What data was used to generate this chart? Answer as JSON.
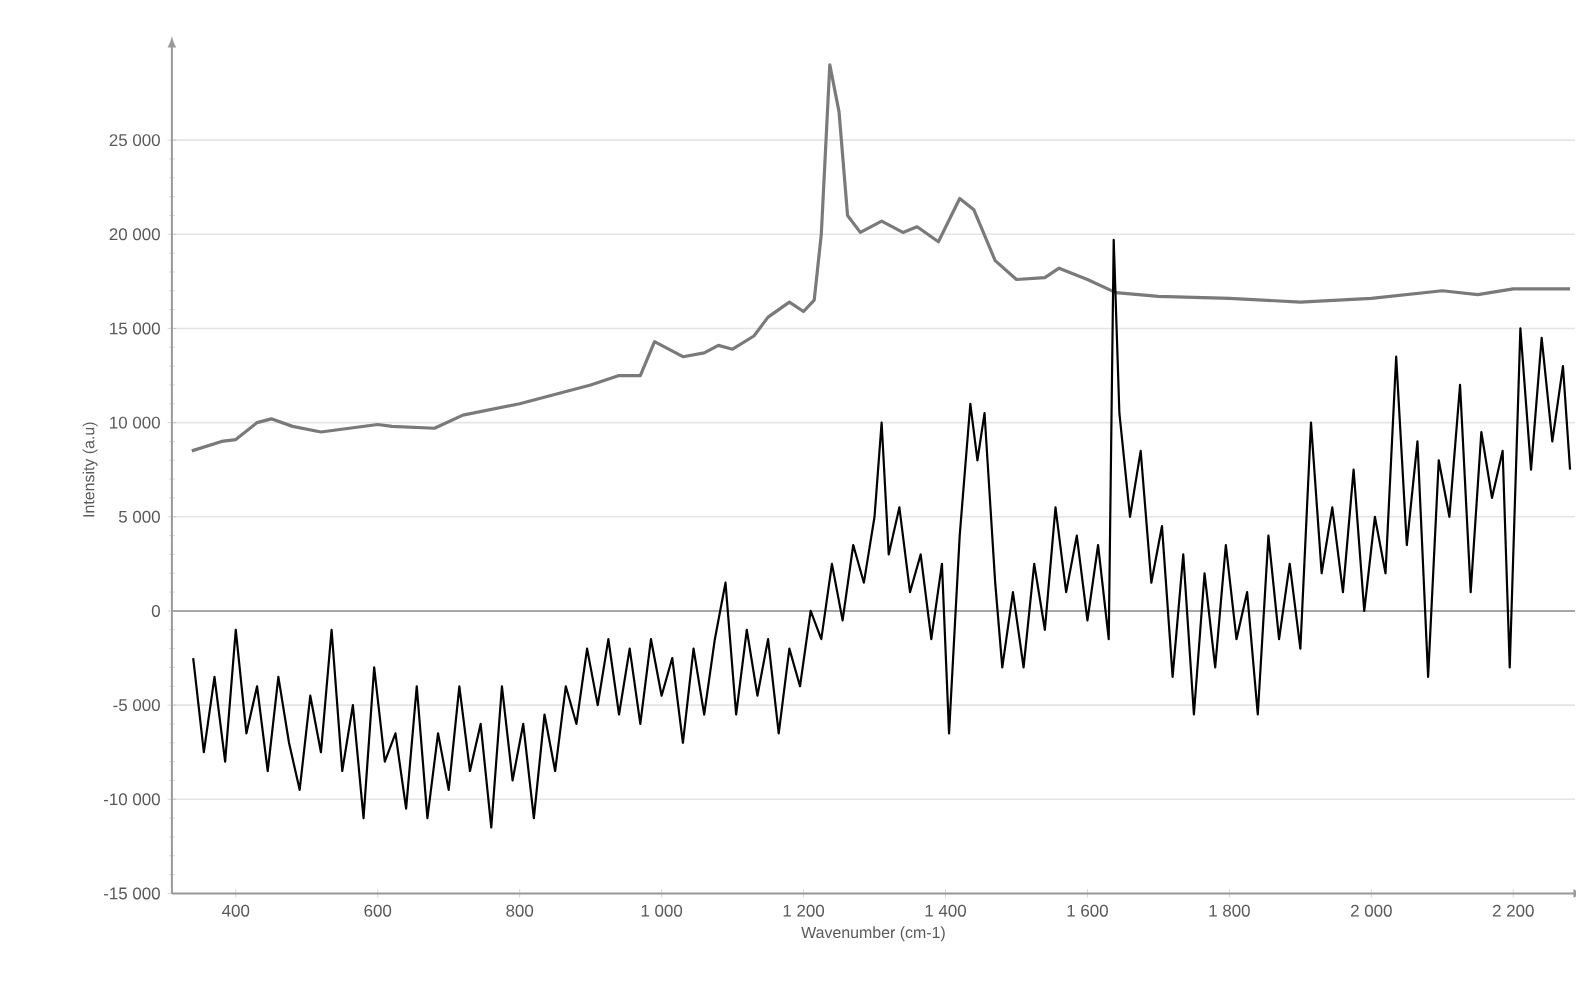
{
  "chart_data": {
    "type": "line",
    "xlabel": "Wavenumber (cm-1)",
    "ylabel": "Intensity (a.u)",
    "xlim": [
      310,
      2287
    ],
    "ylim": [
      -15000,
      30000
    ],
    "xticks": [
      400,
      600,
      800,
      {
        "value": 1000,
        "label": "1 000"
      },
      {
        "value": 1200,
        "label": "1 200"
      },
      {
        "value": 1400,
        "label": "1 400"
      },
      {
        "value": 1600,
        "label": "1 600"
      },
      {
        "value": 1800,
        "label": "1 800"
      },
      {
        "value": 2000,
        "label": "2 000"
      },
      {
        "value": 2200,
        "label": "2 200"
      }
    ],
    "yticks": [
      {
        "value": -15000,
        "label": "-15 000"
      },
      {
        "value": -10000,
        "label": "-10 000"
      },
      {
        "value": -5000,
        "label": "-5 000"
      },
      0,
      {
        "value": 5000,
        "label": "5 000"
      },
      {
        "value": 10000,
        "label": "10 000"
      },
      {
        "value": 15000,
        "label": "15 000"
      },
      {
        "value": 20000,
        "label": "20 000"
      },
      {
        "value": 25000,
        "label": "25 000"
      }
    ],
    "grid": "y",
    "ref_lines": [
      {
        "axis": "y",
        "value": 0,
        "color": "#a6a6a6"
      }
    ],
    "series": [
      {
        "color": "#7a7a7a",
        "x": [
          338,
          380,
          400,
          430,
          450,
          480,
          520,
          560,
          600,
          620,
          680,
          720,
          800,
          850,
          900,
          940,
          970,
          990,
          1030,
          1060,
          1080,
          1100,
          1130,
          1150,
          1180,
          1200,
          1215,
          1225,
          1237,
          1250,
          1262,
          1280,
          1310,
          1340,
          1360,
          1390,
          1420,
          1440,
          1470,
          1500,
          1540,
          1560,
          1600,
          1640,
          1700,
          1800,
          1900,
          2000,
          2100,
          2150,
          2200,
          2280
        ],
        "values": [
          8500,
          9000,
          9100,
          10000,
          10200,
          9800,
          9500,
          9700,
          9900,
          9800,
          9700,
          10400,
          11000,
          11500,
          12000,
          12500,
          12500,
          14300,
          13500,
          13700,
          14100,
          13900,
          14600,
          15600,
          16400,
          15900,
          16500,
          20000,
          29000,
          26500,
          21000,
          20100,
          20700,
          20100,
          20400,
          19600,
          21900,
          21300,
          18600,
          17600,
          17700,
          18200,
          17600,
          16900,
          16700,
          16600,
          16400,
          16600,
          17000,
          16800,
          17100,
          17100
        ]
      },
      {
        "color": "#000000",
        "x": [
          340,
          355,
          370,
          385,
          400,
          415,
          430,
          445,
          460,
          475,
          490,
          505,
          520,
          535,
          550,
          565,
          580,
          595,
          610,
          625,
          640,
          655,
          670,
          685,
          700,
          715,
          730,
          745,
          760,
          775,
          790,
          805,
          820,
          835,
          850,
          865,
          880,
          895,
          910,
          925,
          940,
          955,
          970,
          985,
          1000,
          1015,
          1030,
          1045,
          1060,
          1075,
          1090,
          1105,
          1120,
          1135,
          1150,
          1165,
          1180,
          1195,
          1210,
          1225,
          1240,
          1255,
          1270,
          1285,
          1300,
          1310,
          1320,
          1335,
          1350,
          1365,
          1380,
          1395,
          1405,
          1420,
          1435,
          1445,
          1455,
          1470,
          1480,
          1495,
          1510,
          1525,
          1540,
          1555,
          1570,
          1585,
          1600,
          1615,
          1630,
          1637,
          1645,
          1660,
          1675,
          1690,
          1705,
          1720,
          1735,
          1750,
          1765,
          1780,
          1795,
          1810,
          1825,
          1840,
          1855,
          1870,
          1885,
          1900,
          1915,
          1930,
          1945,
          1960,
          1975,
          1990,
          2005,
          2020,
          2035,
          2050,
          2065,
          2080,
          2095,
          2110,
          2125,
          2140,
          2155,
          2170,
          2185,
          2195,
          2210,
          2225,
          2240,
          2255,
          2270,
          2280
        ],
        "values": [
          -2500,
          -7500,
          -3500,
          -8000,
          -1000,
          -6500,
          -4000,
          -8500,
          -3500,
          -7000,
          -9500,
          -4500,
          -7500,
          -1000,
          -8500,
          -5000,
          -11000,
          -3000,
          -8000,
          -6500,
          -10500,
          -4000,
          -11000,
          -6500,
          -9500,
          -4000,
          -8500,
          -6000,
          -11500,
          -4000,
          -9000,
          -6000,
          -11000,
          -5500,
          -8500,
          -4000,
          -6000,
          -2000,
          -5000,
          -1500,
          -5500,
          -2000,
          -6000,
          -1500,
          -4500,
          -2500,
          -7000,
          -2000,
          -5500,
          -1500,
          1500,
          -5500,
          -1000,
          -4500,
          -1500,
          -6500,
          -2000,
          -4000,
          0,
          -1500,
          2500,
          -500,
          3500,
          1500,
          5000,
          10000,
          3000,
          5500,
          1000,
          3000,
          -1500,
          2500,
          -6500,
          4000,
          11000,
          8000,
          10500,
          1500,
          -3000,
          1000,
          -3000,
          2500,
          -1000,
          5500,
          1000,
          4000,
          -500,
          3500,
          -1500,
          19700,
          10500,
          5000,
          8500,
          1500,
          4500,
          -3500,
          3000,
          -5500,
          2000,
          -3000,
          3500,
          -1500,
          1000,
          -5500,
          4000,
          -1500,
          2500,
          -2000,
          10000,
          2000,
          5500,
          1000,
          7500,
          0,
          5000,
          2000,
          13500,
          3500,
          9000,
          -3500,
          8000,
          5000,
          12000,
          1000,
          9500,
          6000,
          8500,
          -3000,
          15000,
          7500,
          14500,
          9000,
          13000,
          7500
        ]
      }
    ]
  }
}
